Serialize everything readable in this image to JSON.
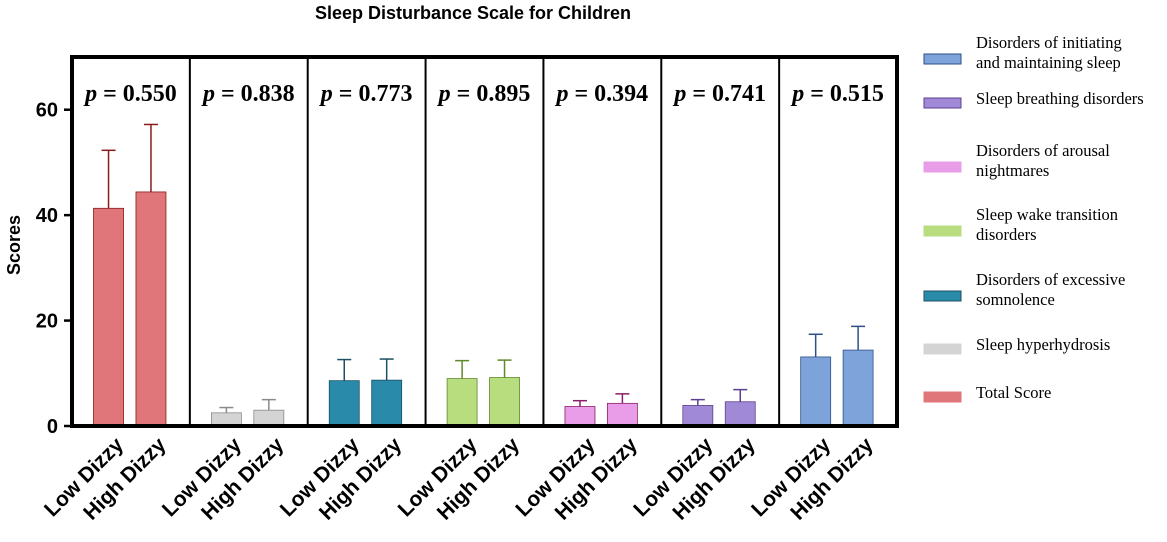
{
  "chart_data": {
    "type": "bar",
    "title": "Sleep Disturbance Scale for Children",
    "ylabel": "Scores",
    "ylim": [
      0,
      70
    ],
    "yticks": [
      "0",
      "20",
      "40",
      "60"
    ],
    "categories": [
      "Low Dizzy",
      "High Dizzy"
    ],
    "groups": [
      {
        "name": "Total Score",
        "color": "#e07679",
        "err_color": "#8b1a1a",
        "p_label": "0.550",
        "values": [
          41.3,
          44.4
        ],
        "errors": [
          11.0,
          12.8
        ]
      },
      {
        "name": "Sleep hyperhydrosis",
        "color": "#d4d4d4",
        "err_color": "#8a8a8a",
        "p_label": "0.838",
        "values": [
          2.5,
          3.0
        ],
        "errors": [
          1.0,
          2.0
        ]
      },
      {
        "name": "Disorders of excessive somnolence",
        "color": "#2a8aaa",
        "err_color": "#1c4f63",
        "p_label": "0.773",
        "values": [
          8.6,
          8.7
        ],
        "errors": [
          4.0,
          4.0
        ]
      },
      {
        "name": "Sleep wake transition disorders",
        "color": "#b8dd7e",
        "err_color": "#5f8a2a",
        "p_label": "0.895",
        "values": [
          9.0,
          9.2
        ],
        "errors": [
          3.4,
          3.3
        ]
      },
      {
        "name": "Disorders of arousal nightmares",
        "color": "#e99de8",
        "err_color": "#8b1f6a",
        "p_label": "0.394",
        "values": [
          3.7,
          4.3
        ],
        "errors": [
          1.1,
          1.8
        ]
      },
      {
        "name": "Sleep breathing disorders",
        "color": "#a08ad8",
        "err_color": "#5e3f8f",
        "p_label": "0.741",
        "values": [
          3.9,
          4.6
        ],
        "errors": [
          1.1,
          2.3
        ]
      },
      {
        "name": "Disorders of initiating and maintaining sleep",
        "color": "#7ea3db",
        "err_color": "#2e4f88",
        "p_label": "0.515",
        "values": [
          13.1,
          14.4
        ],
        "errors": [
          4.3,
          4.5
        ]
      }
    ],
    "p_prefix": "p",
    "p_equals": " = ",
    "legend": [
      {
        "lines": [
          "Disorders of initiating",
          "and maintaining sleep"
        ],
        "color": "#7ea3db",
        "border": "#2e4f88"
      },
      {
        "lines": [
          "Sleep  breathing disorders"
        ],
        "color": "#a08ad8",
        "border": "#5e3f8f"
      },
      {
        "lines": [
          "Disorders of arousal",
          "nightmares"
        ],
        "color": "#e99de8",
        "border": "#e99de8"
      },
      {
        "lines": [
          "Sleep  wake  transition",
          "disorders"
        ],
        "color": "#b8dd7e",
        "border": "#b8dd7e"
      },
      {
        "lines": [
          "Disorders of excessive",
          "somnolence"
        ],
        "color": "#2a8aaa",
        "border": "#1c4f63"
      },
      {
        "lines": [
          "Sleep hyperhydrosis"
        ],
        "color": "#d4d4d4",
        "border": "#d4d4d4"
      },
      {
        "lines": [
          "Total Score"
        ],
        "color": "#e07679",
        "border": "#e07679"
      }
    ],
    "legend_placement": "right",
    "grid": false
  }
}
